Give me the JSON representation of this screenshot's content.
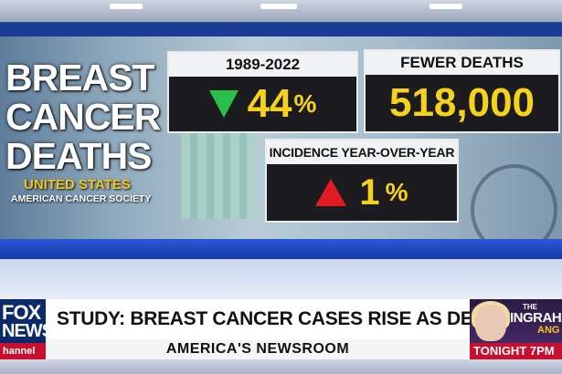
{
  "graphic": {
    "title_lines": [
      "BREAST",
      "CANCER",
      "DEATHS"
    ],
    "region": "UNITED STATES",
    "source": "AMERICAN CANCER SOCIETY",
    "panels": {
      "period": {
        "label": "1989-2022",
        "value": "44",
        "unit": "%",
        "direction_icon": "triangle-down-icon",
        "color": "#27c04a"
      },
      "fewer_deaths": {
        "label": "FEWER DEATHS",
        "value": "518,000"
      },
      "incidence": {
        "label": "INCIDENCE YEAR-OVER-YEAR",
        "value": "1",
        "unit": "%",
        "direction_icon": "triangle-up-icon",
        "color": "#e01b24"
      }
    },
    "value_color": "#f7d21a"
  },
  "lower_third": {
    "network_logo": {
      "line1": "FOX",
      "line2": "NEWS",
      "line3": "hannel"
    },
    "headline": "STUDY: BREAST CANCER CASES RISE AS DEATHS DECREASE",
    "show_name": "AMERICA'S NEWSROOM",
    "promo": {
      "prefix": "THE",
      "name": "INGRAHA",
      "suffix": "ANG",
      "time": "TONIGHT 7PM"
    }
  }
}
